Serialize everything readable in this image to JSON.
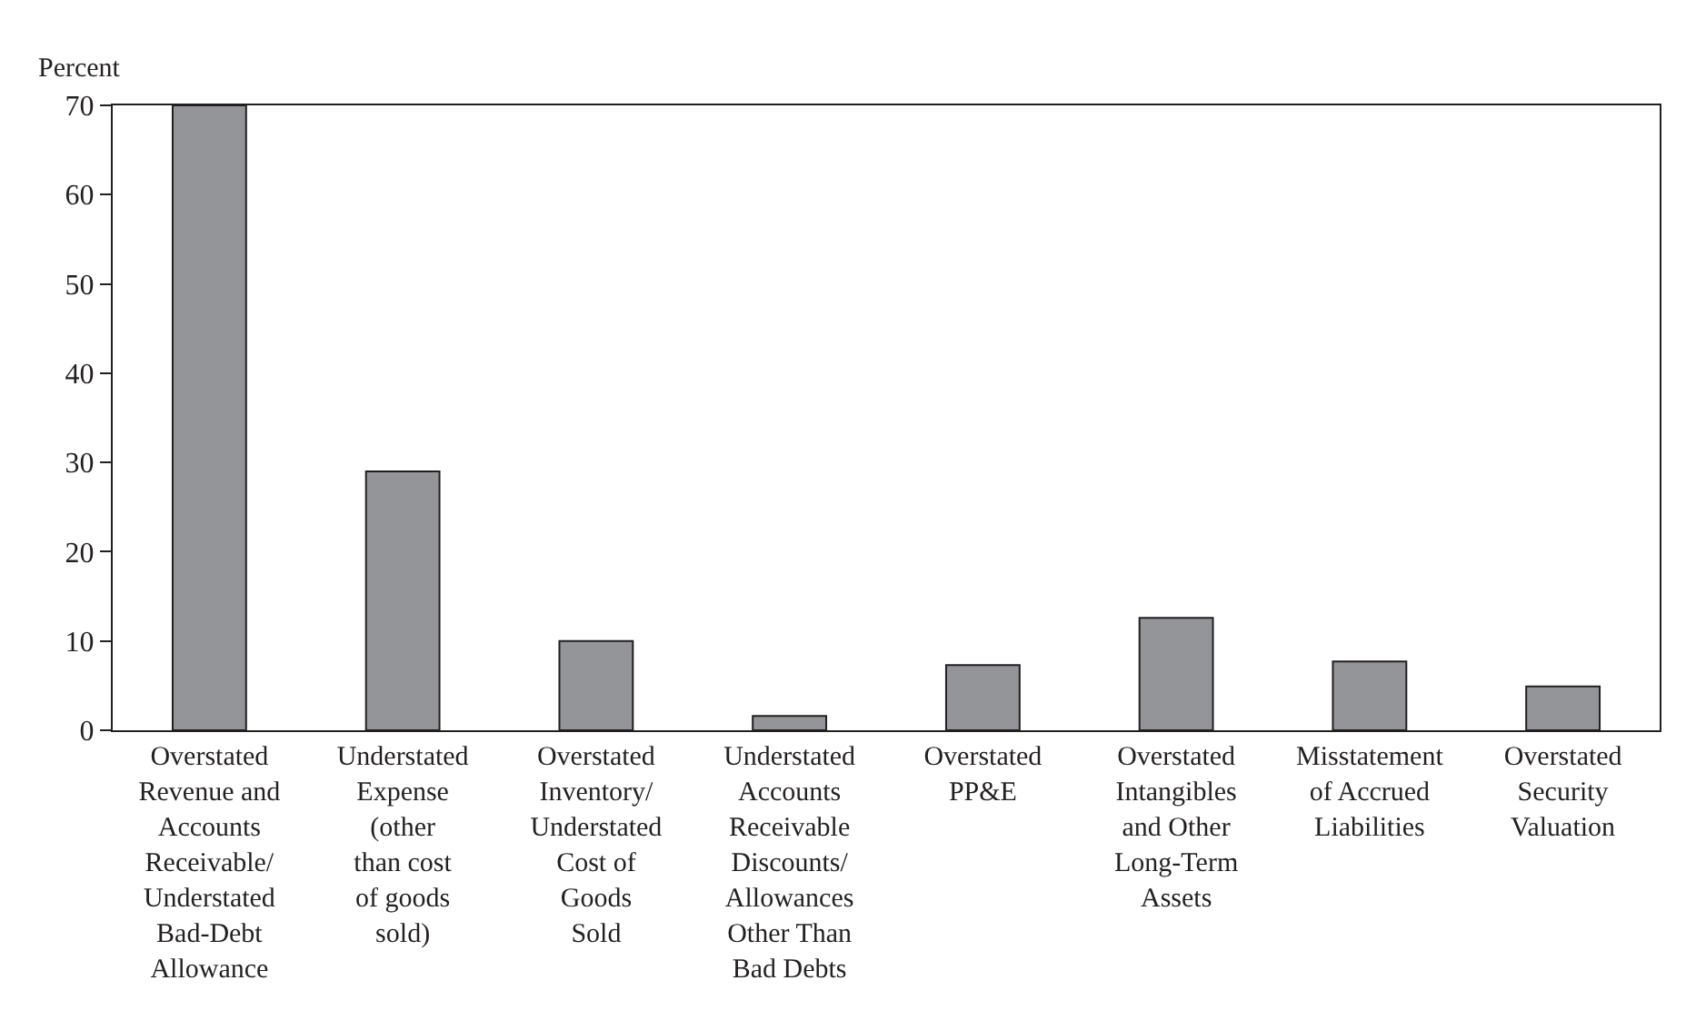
{
  "chart_data": {
    "type": "bar",
    "ylabel": "Percent",
    "categories": [
      "Overstated\nRevenue and\nAccounts\nReceivable/\nUnderstated\nBad-Debt\nAllowance",
      "Understated\nExpense\n(other\nthan cost\nof goods\nsold)",
      "Overstated\nInventory/\nUnderstated\nCost of\nGoods\nSold",
      "Understated\nAccounts\nReceivable\nDiscounts/\nAllowances\nOther Than\nBad Debts",
      "Overstated\nPP&E",
      "Overstated\nIntangibles\nand Other\nLong-Term\nAssets",
      "Misstatement\nof Accrued\nLiabilities",
      "Overstated\nSecurity\nValuation"
    ],
    "values": [
      70,
      29,
      10,
      1.6,
      7.3,
      12.6,
      7.7,
      4.9
    ],
    "color": "#939598",
    "ylim": [
      0,
      70
    ],
    "yticks": [
      0,
      10,
      20,
      30,
      40,
      50,
      60,
      70
    ]
  }
}
